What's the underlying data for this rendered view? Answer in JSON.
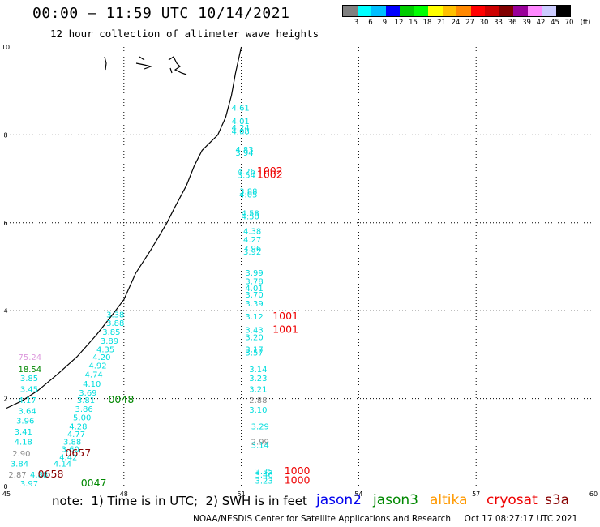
{
  "header": {
    "title": "00:00 – 11:59 UTC 10/14/2021",
    "subtitle": "12 hour collection of altimeter wave heights"
  },
  "colorbar": {
    "unit": "(ft)",
    "colors": [
      "#808080",
      "#00ffff",
      "#00bfff",
      "#0000ff",
      "#00cc00",
      "#00ff00",
      "#ffff00",
      "#ffc000",
      "#ff8800",
      "#ff0000",
      "#cc0000",
      "#800000",
      "#990099",
      "#ff88ff",
      "#ccccff",
      "#000000"
    ],
    "labels": [
      "3",
      "6",
      "9",
      "12",
      "15",
      "18",
      "21",
      "24",
      "27",
      "30",
      "33",
      "36",
      "39",
      "42",
      "45",
      "70"
    ]
  },
  "footer": {
    "note": "note:  1) Time is in UTC;  2) SWH is in feet",
    "credit": "NOAA/NESDIS Center for Satellite Applications and Research     Oct 17 08:27:17 UTC 2021"
  },
  "chart_data": {
    "type": "scatter",
    "title": "00:00 – 11:59 UTC 10/14/2021",
    "subtitle": "12 hour collection of altimeter wave heights",
    "xlim": [
      45,
      60
    ],
    "ylim": [
      0,
      10
    ],
    "xticks": [
      45,
      48,
      51,
      54,
      57,
      60
    ],
    "yticks": [
      0,
      2,
      4,
      6,
      8,
      10
    ],
    "grid": true,
    "legend": [
      {
        "name": "jason2",
        "color": "#0000ee"
      },
      {
        "name": "jason3",
        "color": "#008800"
      },
      {
        "name": "altika",
        "color": "#ff9900"
      },
      {
        "name": "cryosat",
        "color": "#ee0000"
      },
      {
        "name": "s3a",
        "color": "#880000"
      }
    ],
    "coastline": [
      [
        45.0,
        1.78
      ],
      [
        45.4,
        1.95
      ],
      [
        45.8,
        2.18
      ],
      [
        46.3,
        2.55
      ],
      [
        46.8,
        2.95
      ],
      [
        47.3,
        3.45
      ],
      [
        47.7,
        3.9
      ],
      [
        48.0,
        4.25
      ],
      [
        48.3,
        4.85
      ],
      [
        48.7,
        5.4
      ],
      [
        49.1,
        6.0
      ],
      [
        49.3,
        6.35
      ],
      [
        49.6,
        6.85
      ],
      [
        49.8,
        7.3
      ],
      [
        50.0,
        7.65
      ],
      [
        50.4,
        8.0
      ],
      [
        50.6,
        8.4
      ],
      [
        50.75,
        8.9
      ],
      [
        50.85,
        9.4
      ],
      [
        50.95,
        9.8
      ],
      [
        51.0,
        10.0
      ]
    ],
    "swh_points": [
      {
        "x": 50.75,
        "y": 8.55,
        "v": "4.61",
        "color": "#00dddd"
      },
      {
        "x": 50.75,
        "y": 8.25,
        "v": "4.01",
        "color": "#00dddd"
      },
      {
        "x": 50.75,
        "y": 8.1,
        "v": "4.24",
        "color": "#00dddd"
      },
      {
        "x": 50.75,
        "y": 8.02,
        "v": "4.08",
        "color": "#00dddd"
      },
      {
        "x": 50.85,
        "y": 7.6,
        "v": "4.83",
        "color": "#00dddd"
      },
      {
        "x": 50.85,
        "y": 7.53,
        "v": "3.94",
        "color": "#00dddd"
      },
      {
        "x": 50.9,
        "y": 7.1,
        "v": "4.26",
        "color": "#00dddd"
      },
      {
        "x": 50.9,
        "y": 7.02,
        "v": "3.54",
        "color": "#00dddd"
      },
      {
        "x": 50.95,
        "y": 6.65,
        "v": "3.88",
        "color": "#00dddd"
      },
      {
        "x": 50.95,
        "y": 6.58,
        "v": "4.05",
        "color": "#00dddd"
      },
      {
        "x": 51.0,
        "y": 6.15,
        "v": "4.58",
        "color": "#00dddd"
      },
      {
        "x": 51.0,
        "y": 6.08,
        "v": "4.50",
        "color": "#00dddd"
      },
      {
        "x": 51.05,
        "y": 5.75,
        "v": "4.38",
        "color": "#00dddd"
      },
      {
        "x": 51.05,
        "y": 5.55,
        "v": "4.27",
        "color": "#00dddd"
      },
      {
        "x": 51.05,
        "y": 5.35,
        "v": "3.96",
        "color": "#00dddd"
      },
      {
        "x": 51.05,
        "y": 5.28,
        "v": "3.92",
        "color": "#00dddd"
      },
      {
        "x": 51.1,
        "y": 4.8,
        "v": "3.99",
        "color": "#00dddd"
      },
      {
        "x": 51.1,
        "y": 4.6,
        "v": "3.78",
        "color": "#00dddd"
      },
      {
        "x": 51.1,
        "y": 4.45,
        "v": "4.01",
        "color": "#00dddd"
      },
      {
        "x": 51.1,
        "y": 4.3,
        "v": "3.70",
        "color": "#00dddd"
      },
      {
        "x": 51.1,
        "y": 4.1,
        "v": "3.39",
        "color": "#00dddd"
      },
      {
        "x": 51.1,
        "y": 3.8,
        "v": "3.12",
        "color": "#00dddd"
      },
      {
        "x": 51.1,
        "y": 3.5,
        "v": "3.43",
        "color": "#00dddd"
      },
      {
        "x": 51.1,
        "y": 3.33,
        "v": "3.20",
        "color": "#00dddd"
      },
      {
        "x": 51.1,
        "y": 3.05,
        "v": "3.17",
        "color": "#00dddd"
      },
      {
        "x": 51.1,
        "y": 2.98,
        "v": "3.57",
        "color": "#00dddd"
      },
      {
        "x": 51.2,
        "y": 2.6,
        "v": "3.14",
        "color": "#00dddd"
      },
      {
        "x": 51.2,
        "y": 2.4,
        "v": "3.23",
        "color": "#00dddd"
      },
      {
        "x": 51.2,
        "y": 2.15,
        "v": "3.21",
        "color": "#00dddd"
      },
      {
        "x": 51.2,
        "y": 1.9,
        "v": "2.88",
        "color": "#888888"
      },
      {
        "x": 51.2,
        "y": 1.68,
        "v": "3.10",
        "color": "#00dddd"
      },
      {
        "x": 51.25,
        "y": 1.3,
        "v": "3.29",
        "color": "#00dddd"
      },
      {
        "x": 51.25,
        "y": 0.95,
        "v": "2.99",
        "color": "#888888"
      },
      {
        "x": 51.25,
        "y": 0.88,
        "v": "3.14",
        "color": "#00dddd"
      },
      {
        "x": 51.35,
        "y": 0.28,
        "v": "3.35",
        "color": "#00dddd"
      },
      {
        "x": 51.35,
        "y": 0.2,
        "v": "3.46",
        "color": "#00dddd"
      },
      {
        "x": 51.35,
        "y": 0.06,
        "v": "3.23",
        "color": "#00dddd"
      },
      {
        "x": 47.55,
        "y": 3.85,
        "v": "3.38",
        "color": "#00dddd"
      },
      {
        "x": 47.55,
        "y": 3.65,
        "v": "3.88",
        "color": "#00dddd"
      },
      {
        "x": 47.45,
        "y": 3.45,
        "v": "3.85",
        "color": "#00dddd"
      },
      {
        "x": 47.4,
        "y": 3.25,
        "v": "3.89",
        "color": "#00dddd"
      },
      {
        "x": 47.3,
        "y": 3.05,
        "v": "4.35",
        "color": "#00dddd"
      },
      {
        "x": 47.2,
        "y": 2.88,
        "v": "4.20",
        "color": "#00dddd"
      },
      {
        "x": 47.1,
        "y": 2.68,
        "v": "4.92",
        "color": "#00dddd"
      },
      {
        "x": 47.0,
        "y": 2.48,
        "v": "4.74",
        "color": "#00dddd"
      },
      {
        "x": 46.95,
        "y": 2.27,
        "v": "4.10",
        "color": "#00dddd"
      },
      {
        "x": 46.85,
        "y": 2.07,
        "v": "3.69",
        "color": "#00dddd"
      },
      {
        "x": 46.8,
        "y": 1.9,
        "v": "3.81",
        "color": "#00dddd"
      },
      {
        "x": 46.75,
        "y": 1.7,
        "v": "3.86",
        "color": "#00dddd"
      },
      {
        "x": 46.7,
        "y": 1.5,
        "v": "5.00",
        "color": "#00dddd"
      },
      {
        "x": 46.6,
        "y": 1.3,
        "v": "4.28",
        "color": "#00dddd"
      },
      {
        "x": 46.55,
        "y": 1.13,
        "v": "4.77",
        "color": "#00dddd"
      },
      {
        "x": 46.45,
        "y": 0.95,
        "v": "3.88",
        "color": "#00dddd"
      },
      {
        "x": 46.4,
        "y": 0.78,
        "v": "3.60",
        "color": "#00dddd"
      },
      {
        "x": 46.35,
        "y": 0.6,
        "v": "4.42",
        "color": "#00dddd"
      },
      {
        "x": 46.2,
        "y": 0.45,
        "v": "4.14",
        "color": "#00dddd"
      },
      {
        "x": 45.3,
        "y": 2.88,
        "v": "75.24",
        "color": "#dd99dd"
      },
      {
        "x": 45.3,
        "y": 2.6,
        "v": "18.54",
        "color": "#008800"
      },
      {
        "x": 45.35,
        "y": 2.4,
        "v": "3.85",
        "color": "#00dddd"
      },
      {
        "x": 45.35,
        "y": 2.15,
        "v": "3.45",
        "color": "#00dddd"
      },
      {
        "x": 45.3,
        "y": 1.9,
        "v": "4.17",
        "color": "#00dddd"
      },
      {
        "x": 45.3,
        "y": 1.65,
        "v": "3.64",
        "color": "#00dddd"
      },
      {
        "x": 45.25,
        "y": 1.43,
        "v": "3.96",
        "color": "#00dddd"
      },
      {
        "x": 45.2,
        "y": 1.18,
        "v": "3.41",
        "color": "#00dddd"
      },
      {
        "x": 45.2,
        "y": 0.95,
        "v": "4.18",
        "color": "#00dddd"
      },
      {
        "x": 45.15,
        "y": 0.68,
        "v": "2.90",
        "color": "#888888"
      },
      {
        "x": 45.1,
        "y": 0.45,
        "v": "3.84",
        "color": "#00dddd"
      },
      {
        "x": 45.05,
        "y": 0.2,
        "v": "2.87",
        "color": "#888888"
      },
      {
        "x": 45.6,
        "y": 0.2,
        "v": "4.88",
        "color": "#00dddd"
      },
      {
        "x": 45.35,
        "y": 0.0,
        "v": "3.97",
        "color": "#00dddd"
      }
    ],
    "time_labels": [
      {
        "x": 51.4,
        "y": 7.1,
        "v": "1002",
        "color": "#ee0000"
      },
      {
        "x": 51.4,
        "y": 7.02,
        "v": "1002",
        "color": "#ee0000"
      },
      {
        "x": 51.8,
        "y": 3.8,
        "v": "1001",
        "color": "#ee0000"
      },
      {
        "x": 51.8,
        "y": 3.5,
        "v": "1001",
        "color": "#ee0000"
      },
      {
        "x": 52.1,
        "y": 0.28,
        "v": "1000",
        "color": "#ee0000"
      },
      {
        "x": 52.1,
        "y": 0.06,
        "v": "1000",
        "color": "#ee0000"
      },
      {
        "x": 47.6,
        "y": 1.9,
        "v": "0048",
        "color": "#008800"
      },
      {
        "x": 46.5,
        "y": 0.68,
        "v": "0657",
        "color": "#880000"
      },
      {
        "x": 45.8,
        "y": 0.2,
        "v": "0658",
        "color": "#880000"
      },
      {
        "x": 46.9,
        "y": 0.0,
        "v": "0047",
        "color": "#008800"
      }
    ]
  }
}
